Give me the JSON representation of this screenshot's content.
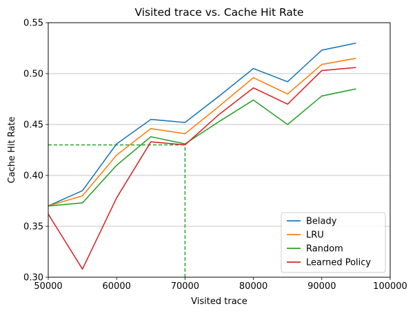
{
  "chart_data": {
    "type": "line",
    "title": "Visited trace vs. Cache Hit Rate",
    "xlabel": "Visited trace",
    "ylabel": "Cache Hit Rate",
    "xlim": [
      50000,
      100000
    ],
    "ylim": [
      0.3,
      0.55
    ],
    "xticks": [
      50000,
      60000,
      70000,
      80000,
      90000,
      100000
    ],
    "yticks": [
      0.3,
      0.35,
      0.4,
      0.45,
      0.5,
      0.55
    ],
    "xtick_labels": [
      "50000",
      "60000",
      "70000",
      "80000",
      "90000",
      "100000"
    ],
    "ytick_labels": [
      "0.30",
      "0.35",
      "0.40",
      "0.45",
      "0.50",
      "0.55"
    ],
    "grid": "horizontal",
    "legend_position": "bottom-right",
    "x": [
      50000,
      55000,
      60000,
      65000,
      70000,
      75000,
      80000,
      85000,
      90000,
      95000
    ],
    "series": [
      {
        "name": "Belady",
        "color": "#1f77b4",
        "values": [
          0.37,
          0.385,
          0.431,
          0.455,
          0.452,
          0.478,
          0.505,
          0.492,
          0.523,
          0.53
        ]
      },
      {
        "name": "LRU",
        "color": "#ff7f0e",
        "values": [
          0.37,
          0.38,
          0.42,
          0.446,
          0.441,
          0.468,
          0.496,
          0.48,
          0.509,
          0.515
        ]
      },
      {
        "name": "Random",
        "color": "#2ca02c",
        "values": [
          0.37,
          0.373,
          0.41,
          0.438,
          0.431,
          0.453,
          0.474,
          0.45,
          0.478,
          0.485
        ]
      },
      {
        "name": "Learned Policy",
        "color": "#d62728",
        "values": [
          0.362,
          0.308,
          0.378,
          0.433,
          0.43,
          0.46,
          0.486,
          0.47,
          0.503,
          0.506
        ]
      }
    ],
    "reference_lines": [
      {
        "type": "horizontal",
        "y": 0.43,
        "x_range": [
          50000,
          70000
        ],
        "color": "#2ca02c",
        "style": "dashed"
      },
      {
        "type": "vertical",
        "x": 70000,
        "y_range": [
          0.3,
          0.43
        ],
        "color": "#2ca02c",
        "style": "dashed"
      }
    ]
  }
}
